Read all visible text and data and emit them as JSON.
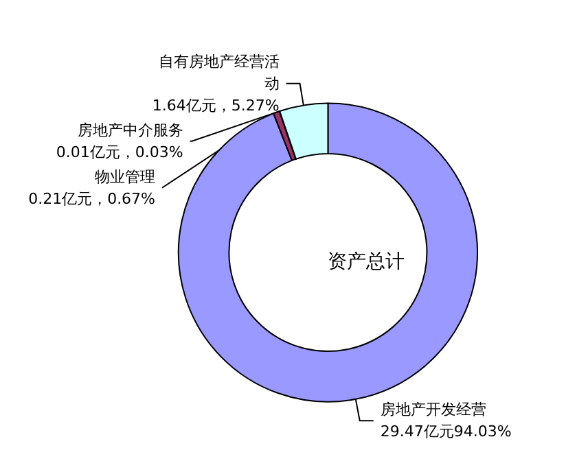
{
  "chart_data": {
    "type": "donut",
    "categories": [
      "房地产开发经营",
      "物业管理",
      "房地产中介服务",
      "自有房地产经营活动"
    ],
    "values": [
      29.47,
      0.21,
      0.01,
      1.64
    ],
    "colors": [
      "#9999ff",
      "#993366",
      "#ffffcc",
      "#ccffff"
    ],
    "value_labels": [
      "29.47亿元94.03%",
      "0.21亿元，0.67%",
      "0.01亿元，0.03%",
      "1.64亿元，5.27%"
    ],
    "annotations": [
      "资产总计"
    ],
    "legend": false
  }
}
